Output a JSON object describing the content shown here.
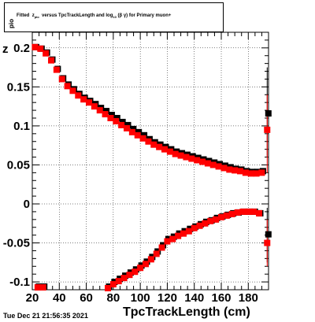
{
  "title": {
    "prefix": "Fitted",
    "z": "z",
    "z_sub": "pio",
    "middle": "versus TpcTrackLength and log",
    "log_sub": "10",
    "paren": "(β γ)",
    "suffix": "for Primary muon+"
  },
  "timestamp": "Tue Dec 21 21:56:35 2021",
  "chart_data": {
    "type": "scatter",
    "title": "Fitted z_pio versus TpcTrackLength and log10(βγ) for Primary muon+",
    "xlabel": "TpcTrackLength (cm)",
    "ylabel": "z",
    "ylabel_sub": "pio",
    "xlim": [
      20,
      195
    ],
    "ylim": [
      -0.11,
      0.22
    ],
    "xticks": [
      20,
      40,
      60,
      80,
      100,
      120,
      140,
      160,
      180
    ],
    "xtick_labels": [
      "20",
      "40",
      "60",
      "80",
      "100",
      "120",
      "140",
      "160",
      "180"
    ],
    "yticks": [
      -0.1,
      -0.05,
      0,
      0.05,
      0.1,
      0.15,
      0.2
    ],
    "ytick_labels": [
      "-0.1",
      "-0.05",
      "0",
      "0.05",
      "0.1",
      "0.15",
      "0.2"
    ],
    "grid": true,
    "colors": {
      "series_black": "#000000",
      "series_red": "#ff0000"
    },
    "series": [
      {
        "color": "#000000",
        "points": [
          [
            22,
            0.2
          ],
          [
            26,
            0.198
          ],
          [
            30,
            0.193
          ],
          [
            34,
            0.184
          ],
          [
            38,
            0.172
          ],
          [
            42,
            0.16
          ],
          [
            46,
            0.152
          ],
          [
            50,
            0.146
          ],
          [
            54,
            0.14
          ],
          [
            58,
            0.135
          ],
          [
            62,
            0.131
          ],
          [
            66,
            0.127
          ],
          [
            70,
            0.122
          ],
          [
            74,
            0.118
          ],
          [
            78,
            0.113
          ],
          [
            82,
            0.109
          ],
          [
            86,
            0.104
          ],
          [
            90,
            0.1
          ],
          [
            94,
            0.095
          ],
          [
            98,
            0.091
          ],
          [
            102,
            0.087
          ],
          [
            106,
            0.082
          ],
          [
            110,
            0.078
          ],
          [
            114,
            0.075
          ],
          [
            118,
            0.072
          ],
          [
            122,
            0.069
          ],
          [
            126,
            0.066
          ],
          [
            130,
            0.064
          ],
          [
            134,
            0.062
          ],
          [
            138,
            0.06
          ],
          [
            142,
            0.058
          ],
          [
            146,
            0.056
          ],
          [
            150,
            0.054
          ],
          [
            154,
            0.052
          ],
          [
            158,
            0.05
          ],
          [
            162,
            0.048
          ],
          [
            166,
            0.046
          ],
          [
            170,
            0.044
          ],
          [
            174,
            0.043
          ],
          [
            178,
            0.041
          ],
          [
            182,
            0.04
          ],
          [
            186,
            0.04
          ],
          [
            190,
            0.041
          ],
          [
            194,
            0.115
          ],
          [
            24,
            -0.107
          ],
          [
            28,
            -0.107
          ],
          [
            76,
            -0.107
          ],
          [
            80,
            -0.101
          ],
          [
            84,
            -0.097
          ],
          [
            88,
            -0.093
          ],
          [
            92,
            -0.089
          ],
          [
            96,
            -0.085
          ],
          [
            100,
            -0.08
          ],
          [
            104,
            -0.075
          ],
          [
            108,
            -0.069
          ],
          [
            112,
            -0.062
          ],
          [
            116,
            -0.054
          ],
          [
            120,
            -0.046
          ],
          [
            124,
            -0.043
          ],
          [
            128,
            -0.039
          ],
          [
            132,
            -0.036
          ],
          [
            136,
            -0.033
          ],
          [
            140,
            -0.03
          ],
          [
            144,
            -0.027
          ],
          [
            148,
            -0.024
          ],
          [
            152,
            -0.022
          ],
          [
            156,
            -0.019
          ],
          [
            160,
            -0.017
          ],
          [
            164,
            -0.015
          ],
          [
            168,
            -0.013
          ],
          [
            172,
            -0.012
          ],
          [
            176,
            -0.011
          ],
          [
            180,
            -0.011
          ],
          [
            184,
            -0.011
          ],
          [
            188,
            -0.013
          ],
          [
            194,
            -0.04
          ]
        ]
      },
      {
        "color": "#ff0000",
        "points": [
          [
            22,
            0.201
          ],
          [
            26,
            0.199
          ],
          [
            30,
            0.193
          ],
          [
            34,
            0.184
          ],
          [
            38,
            0.172
          ],
          [
            42,
            0.16
          ],
          [
            46,
            0.151
          ],
          [
            50,
            0.145
          ],
          [
            54,
            0.139
          ],
          [
            58,
            0.134
          ],
          [
            62,
            0.13
          ],
          [
            66,
            0.125
          ],
          [
            70,
            0.12
          ],
          [
            74,
            0.115
          ],
          [
            78,
            0.11
          ],
          [
            82,
            0.106
          ],
          [
            86,
            0.101
          ],
          [
            90,
            0.097
          ],
          [
            94,
            0.092
          ],
          [
            98,
            0.088
          ],
          [
            102,
            0.084
          ],
          [
            106,
            0.08
          ],
          [
            110,
            0.076
          ],
          [
            114,
            0.073
          ],
          [
            118,
            0.07
          ],
          [
            122,
            0.067
          ],
          [
            126,
            0.064
          ],
          [
            130,
            0.062
          ],
          [
            134,
            0.06
          ],
          [
            138,
            0.058
          ],
          [
            142,
            0.056
          ],
          [
            146,
            0.054
          ],
          [
            150,
            0.052
          ],
          [
            154,
            0.05
          ],
          [
            158,
            0.048
          ],
          [
            162,
            0.046
          ],
          [
            166,
            0.044
          ],
          [
            170,
            0.043
          ],
          [
            174,
            0.042
          ],
          [
            178,
            0.04
          ],
          [
            182,
            0.039
          ],
          [
            186,
            0.039
          ],
          [
            190,
            0.04
          ],
          [
            194,
            0.095
          ],
          [
            24,
            -0.107
          ],
          [
            28,
            -0.107
          ],
          [
            76,
            -0.108
          ],
          [
            80,
            -0.103
          ],
          [
            84,
            -0.099
          ],
          [
            88,
            -0.095
          ],
          [
            92,
            -0.091
          ],
          [
            96,
            -0.087
          ],
          [
            100,
            -0.082
          ],
          [
            104,
            -0.077
          ],
          [
            108,
            -0.071
          ],
          [
            112,
            -0.064
          ],
          [
            116,
            -0.056
          ],
          [
            120,
            -0.048
          ],
          [
            124,
            -0.045
          ],
          [
            128,
            -0.041
          ],
          [
            132,
            -0.038
          ],
          [
            136,
            -0.035
          ],
          [
            140,
            -0.031
          ],
          [
            144,
            -0.028
          ],
          [
            148,
            -0.025
          ],
          [
            152,
            -0.022
          ],
          [
            156,
            -0.02
          ],
          [
            160,
            -0.017
          ],
          [
            164,
            -0.015
          ],
          [
            168,
            -0.013
          ],
          [
            172,
            -0.011
          ],
          [
            176,
            -0.01
          ],
          [
            180,
            -0.01
          ],
          [
            184,
            -0.01
          ],
          [
            188,
            -0.012
          ],
          [
            194,
            -0.05
          ]
        ]
      }
    ],
    "error_bars": [
      {
        "x": 194,
        "ylo": 0.06,
        "yhi": 0.175,
        "color": "#000000"
      },
      {
        "x": 194,
        "ylo": 0.04,
        "yhi": 0.14,
        "color": "#ff0000"
      },
      {
        "x": 194,
        "ylo": -0.075,
        "yhi": -0.005,
        "color": "#000000"
      },
      {
        "x": 194,
        "ylo": -0.08,
        "yhi": -0.02,
        "color": "#ff0000"
      }
    ]
  }
}
